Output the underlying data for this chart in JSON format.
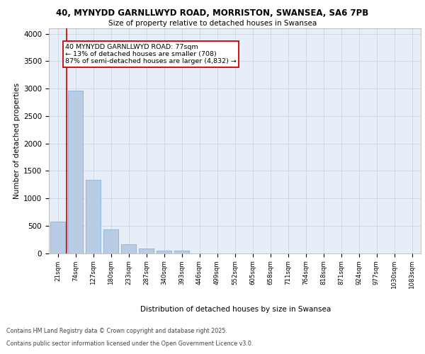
{
  "title_line1": "40, MYNYDD GARNLLWYD ROAD, MORRISTON, SWANSEA, SA6 7PB",
  "title_line2": "Size of property relative to detached houses in Swansea",
  "xlabel": "Distribution of detached houses by size in Swansea",
  "ylabel": "Number of detached properties",
  "categories": [
    "21sqm",
    "74sqm",
    "127sqm",
    "180sqm",
    "233sqm",
    "287sqm",
    "340sqm",
    "393sqm",
    "446sqm",
    "499sqm",
    "552sqm",
    "605sqm",
    "658sqm",
    "711sqm",
    "764sqm",
    "818sqm",
    "871sqm",
    "924sqm",
    "977sqm",
    "1030sqm",
    "1083sqm"
  ],
  "values": [
    580,
    2970,
    1335,
    430,
    160,
    80,
    50,
    45,
    0,
    0,
    0,
    0,
    0,
    0,
    0,
    0,
    0,
    0,
    0,
    0,
    0
  ],
  "bar_color": "#b8cce4",
  "bar_edge_color": "#7ba7d4",
  "grid_color": "#d0d8e8",
  "background_color": "#e8eef8",
  "annotation_box_color": "#cc0000",
  "vline_color": "#cc0000",
  "vline_x_index": 1,
  "annotation_title": "40 MYNYDD GARNLLWYD ROAD: 77sqm",
  "annotation_line2": "← 13% of detached houses are smaller (708)",
  "annotation_line3": "87% of semi-detached houses are larger (4,832) →",
  "footer_line1": "Contains HM Land Registry data © Crown copyright and database right 2025.",
  "footer_line2": "Contains public sector information licensed under the Open Government Licence v3.0.",
  "ylim": [
    0,
    4100
  ],
  "yticks": [
    0,
    500,
    1000,
    1500,
    2000,
    2500,
    3000,
    3500,
    4000
  ]
}
